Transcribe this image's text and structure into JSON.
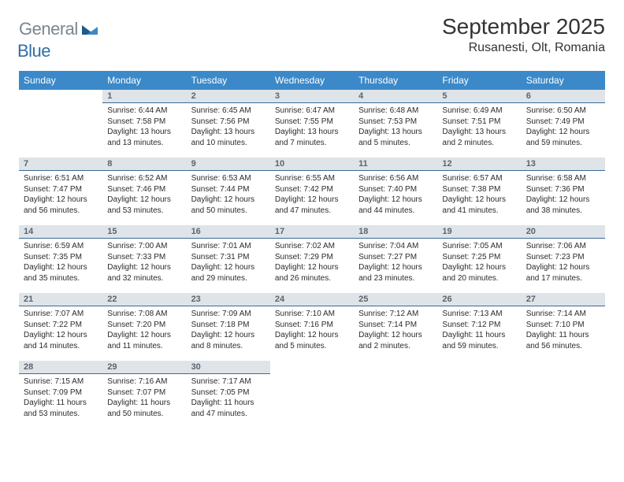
{
  "brand": {
    "part1": "General",
    "part2": "Blue"
  },
  "title": "September 2025",
  "location": "Rusanesti, Olt, Romania",
  "header_bg": "#3b89c9",
  "daynum_bg": "#dfe4e8",
  "daynum_border": "#3b6a94",
  "weekdays": [
    "Sunday",
    "Monday",
    "Tuesday",
    "Wednesday",
    "Thursday",
    "Friday",
    "Saturday"
  ],
  "weeks": [
    [
      {
        "n": "",
        "l1": "",
        "l2": "",
        "l3": "",
        "l4": ""
      },
      {
        "n": "1",
        "l1": "Sunrise: 6:44 AM",
        "l2": "Sunset: 7:58 PM",
        "l3": "Daylight: 13 hours",
        "l4": "and 13 minutes."
      },
      {
        "n": "2",
        "l1": "Sunrise: 6:45 AM",
        "l2": "Sunset: 7:56 PM",
        "l3": "Daylight: 13 hours",
        "l4": "and 10 minutes."
      },
      {
        "n": "3",
        "l1": "Sunrise: 6:47 AM",
        "l2": "Sunset: 7:55 PM",
        "l3": "Daylight: 13 hours",
        "l4": "and 7 minutes."
      },
      {
        "n": "4",
        "l1": "Sunrise: 6:48 AM",
        "l2": "Sunset: 7:53 PM",
        "l3": "Daylight: 13 hours",
        "l4": "and 5 minutes."
      },
      {
        "n": "5",
        "l1": "Sunrise: 6:49 AM",
        "l2": "Sunset: 7:51 PM",
        "l3": "Daylight: 13 hours",
        "l4": "and 2 minutes."
      },
      {
        "n": "6",
        "l1": "Sunrise: 6:50 AM",
        "l2": "Sunset: 7:49 PM",
        "l3": "Daylight: 12 hours",
        "l4": "and 59 minutes."
      }
    ],
    [
      {
        "n": "7",
        "l1": "Sunrise: 6:51 AM",
        "l2": "Sunset: 7:47 PM",
        "l3": "Daylight: 12 hours",
        "l4": "and 56 minutes."
      },
      {
        "n": "8",
        "l1": "Sunrise: 6:52 AM",
        "l2": "Sunset: 7:46 PM",
        "l3": "Daylight: 12 hours",
        "l4": "and 53 minutes."
      },
      {
        "n": "9",
        "l1": "Sunrise: 6:53 AM",
        "l2": "Sunset: 7:44 PM",
        "l3": "Daylight: 12 hours",
        "l4": "and 50 minutes."
      },
      {
        "n": "10",
        "l1": "Sunrise: 6:55 AM",
        "l2": "Sunset: 7:42 PM",
        "l3": "Daylight: 12 hours",
        "l4": "and 47 minutes."
      },
      {
        "n": "11",
        "l1": "Sunrise: 6:56 AM",
        "l2": "Sunset: 7:40 PM",
        "l3": "Daylight: 12 hours",
        "l4": "and 44 minutes."
      },
      {
        "n": "12",
        "l1": "Sunrise: 6:57 AM",
        "l2": "Sunset: 7:38 PM",
        "l3": "Daylight: 12 hours",
        "l4": "and 41 minutes."
      },
      {
        "n": "13",
        "l1": "Sunrise: 6:58 AM",
        "l2": "Sunset: 7:36 PM",
        "l3": "Daylight: 12 hours",
        "l4": "and 38 minutes."
      }
    ],
    [
      {
        "n": "14",
        "l1": "Sunrise: 6:59 AM",
        "l2": "Sunset: 7:35 PM",
        "l3": "Daylight: 12 hours",
        "l4": "and 35 minutes."
      },
      {
        "n": "15",
        "l1": "Sunrise: 7:00 AM",
        "l2": "Sunset: 7:33 PM",
        "l3": "Daylight: 12 hours",
        "l4": "and 32 minutes."
      },
      {
        "n": "16",
        "l1": "Sunrise: 7:01 AM",
        "l2": "Sunset: 7:31 PM",
        "l3": "Daylight: 12 hours",
        "l4": "and 29 minutes."
      },
      {
        "n": "17",
        "l1": "Sunrise: 7:02 AM",
        "l2": "Sunset: 7:29 PM",
        "l3": "Daylight: 12 hours",
        "l4": "and 26 minutes."
      },
      {
        "n": "18",
        "l1": "Sunrise: 7:04 AM",
        "l2": "Sunset: 7:27 PM",
        "l3": "Daylight: 12 hours",
        "l4": "and 23 minutes."
      },
      {
        "n": "19",
        "l1": "Sunrise: 7:05 AM",
        "l2": "Sunset: 7:25 PM",
        "l3": "Daylight: 12 hours",
        "l4": "and 20 minutes."
      },
      {
        "n": "20",
        "l1": "Sunrise: 7:06 AM",
        "l2": "Sunset: 7:23 PM",
        "l3": "Daylight: 12 hours",
        "l4": "and 17 minutes."
      }
    ],
    [
      {
        "n": "21",
        "l1": "Sunrise: 7:07 AM",
        "l2": "Sunset: 7:22 PM",
        "l3": "Daylight: 12 hours",
        "l4": "and 14 minutes."
      },
      {
        "n": "22",
        "l1": "Sunrise: 7:08 AM",
        "l2": "Sunset: 7:20 PM",
        "l3": "Daylight: 12 hours",
        "l4": "and 11 minutes."
      },
      {
        "n": "23",
        "l1": "Sunrise: 7:09 AM",
        "l2": "Sunset: 7:18 PM",
        "l3": "Daylight: 12 hours",
        "l4": "and 8 minutes."
      },
      {
        "n": "24",
        "l1": "Sunrise: 7:10 AM",
        "l2": "Sunset: 7:16 PM",
        "l3": "Daylight: 12 hours",
        "l4": "and 5 minutes."
      },
      {
        "n": "25",
        "l1": "Sunrise: 7:12 AM",
        "l2": "Sunset: 7:14 PM",
        "l3": "Daylight: 12 hours",
        "l4": "and 2 minutes."
      },
      {
        "n": "26",
        "l1": "Sunrise: 7:13 AM",
        "l2": "Sunset: 7:12 PM",
        "l3": "Daylight: 11 hours",
        "l4": "and 59 minutes."
      },
      {
        "n": "27",
        "l1": "Sunrise: 7:14 AM",
        "l2": "Sunset: 7:10 PM",
        "l3": "Daylight: 11 hours",
        "l4": "and 56 minutes."
      }
    ],
    [
      {
        "n": "28",
        "l1": "Sunrise: 7:15 AM",
        "l2": "Sunset: 7:09 PM",
        "l3": "Daylight: 11 hours",
        "l4": "and 53 minutes."
      },
      {
        "n": "29",
        "l1": "Sunrise: 7:16 AM",
        "l2": "Sunset: 7:07 PM",
        "l3": "Daylight: 11 hours",
        "l4": "and 50 minutes."
      },
      {
        "n": "30",
        "l1": "Sunrise: 7:17 AM",
        "l2": "Sunset: 7:05 PM",
        "l3": "Daylight: 11 hours",
        "l4": "and 47 minutes."
      },
      {
        "n": "",
        "l1": "",
        "l2": "",
        "l3": "",
        "l4": ""
      },
      {
        "n": "",
        "l1": "",
        "l2": "",
        "l3": "",
        "l4": ""
      },
      {
        "n": "",
        "l1": "",
        "l2": "",
        "l3": "",
        "l4": ""
      },
      {
        "n": "",
        "l1": "",
        "l2": "",
        "l3": "",
        "l4": ""
      }
    ]
  ]
}
